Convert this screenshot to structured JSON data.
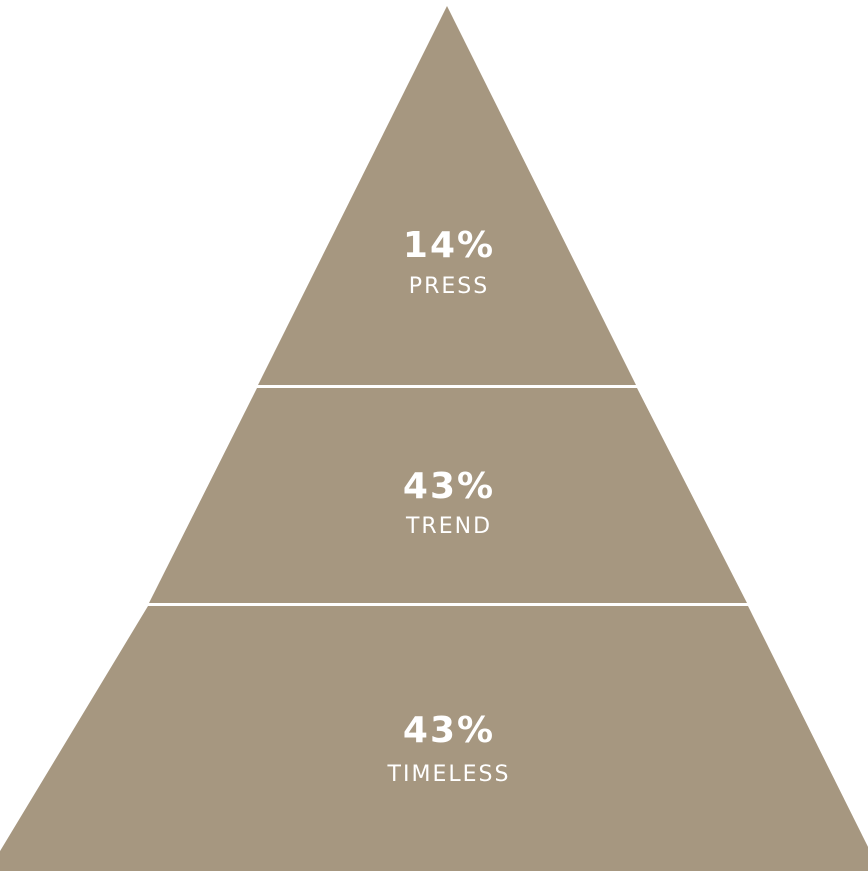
{
  "pyramid": {
    "fill_color": "#a69780",
    "divider_color": "#ffffff",
    "layers": [
      {
        "percent": "14%",
        "label": "PRESS"
      },
      {
        "percent": "43%",
        "label": "TREND"
      },
      {
        "percent": "43%",
        "label": "TIMELESS"
      }
    ]
  }
}
